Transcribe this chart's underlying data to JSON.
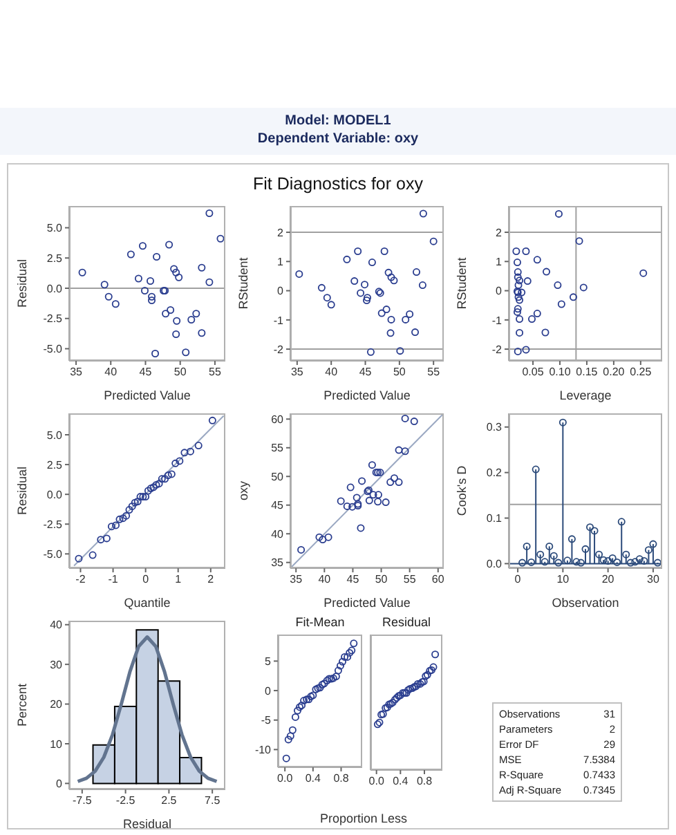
{
  "chart_data": [
    {
      "type": "other",
      "title": "Model: MODEL1",
      "subtitle": "Dependent Variable: oxy",
      "annotations": [
        "Fit Diagnostics for oxy"
      ]
    },
    {
      "type": "scatter",
      "xlabel": "Predicted Value",
      "ylabel": "Residual",
      "marker": "circle",
      "color": "#2a3d8f",
      "xlim": [
        34,
        56.5
      ],
      "ylim": [
        -6,
        6.8
      ],
      "xticks": [
        35,
        40,
        45,
        50,
        55
      ],
      "yticks": [
        {
          "value": -5,
          "label": "-5.0"
        },
        {
          "value": -2.5,
          "label": "-2.5"
        },
        {
          "value": 0,
          "label": "0.0"
        },
        {
          "value": 2.5,
          "label": "2.5"
        },
        {
          "value": 5,
          "label": "5.0"
        }
      ],
      "ref_lines": [
        {
          "axis": "y",
          "value": 0,
          "color": "#a0a0a0"
        }
      ],
      "x": [
        35.9,
        39.1,
        39.7,
        40.7,
        42.9,
        44.0,
        44.6,
        44.9,
        45.7,
        45.9,
        45.9,
        46.4,
        46.6,
        47.6,
        47.8,
        47.9,
        48.4,
        48.6,
        49.1,
        49.4,
        49.5,
        49.4,
        49.8,
        50.8,
        51.6,
        52.3,
        53.1,
        53.1,
        54.2,
        54.2,
        55.8
      ],
      "values": [
        1.3,
        0.3,
        -0.7,
        -1.3,
        2.8,
        0.8,
        3.5,
        -0.2,
        0.6,
        -0.7,
        -1.0,
        -5.4,
        2.6,
        -0.2,
        -0.2,
        -2.1,
        3.6,
        -1.8,
        1.6,
        1.3,
        -2.7,
        -3.8,
        0.9,
        -5.3,
        -2.6,
        -2.1,
        1.7,
        -3.7,
        6.2,
        0.5,
        4.1
      ]
    },
    {
      "type": "scatter",
      "xlabel": "Predicted Value",
      "ylabel": "RStudent",
      "marker": "circle",
      "color": "#2a3d8f",
      "xlim": [
        34,
        56.5
      ],
      "ylim": [
        -2.4,
        2.9
      ],
      "xticks": [
        35,
        40,
        45,
        50,
        55
      ],
      "yticks": [
        -2,
        -1,
        0,
        1,
        2
      ],
      "ref_lines": [
        {
          "axis": "y",
          "value": 2,
          "color": "#a0a0a0"
        },
        {
          "axis": "y",
          "value": -2,
          "color": "#a0a0a0"
        }
      ],
      "x": [
        35.3,
        38.6,
        39.4,
        40.0,
        42.3,
        43.4,
        43.9,
        44.3,
        44.9,
        45.3,
        45.2,
        45.8,
        46.0,
        47.0,
        47.2,
        47.4,
        47.8,
        48.1,
        48.4,
        48.8,
        48.8,
        48.7,
        49.2,
        50.1,
        50.9,
        51.5,
        52.5,
        52.3,
        53.5,
        53.4,
        55.0
      ],
      "values": [
        0.57,
        0.1,
        -0.24,
        -0.48,
        1.07,
        0.33,
        1.35,
        -0.08,
        0.21,
        -0.24,
        -0.33,
        -2.1,
        0.97,
        -0.03,
        -0.08,
        -0.77,
        1.35,
        -0.64,
        0.62,
        0.46,
        -0.99,
        -1.45,
        0.35,
        -2.06,
        -0.99,
        -0.8,
        0.64,
        -1.42,
        2.64,
        0.19,
        1.69
      ]
    },
    {
      "type": "scatter",
      "xlabel": "Leverage",
      "ylabel": "RStudent",
      "marker": "circle",
      "color": "#2a3d8f",
      "xlim": [
        0.005,
        0.29
      ],
      "ylim": [
        -2.4,
        2.9
      ],
      "xticks": [
        0.05,
        {
          "value": 0.1,
          "label": "0.10"
        },
        0.15,
        {
          "value": 0.2,
          "label": "0.20"
        },
        0.25
      ],
      "yticks": [
        -2,
        -1,
        0,
        1,
        2
      ],
      "ref_lines": [
        {
          "axis": "y",
          "value": 2,
          "color": "#a0a0a0"
        },
        {
          "axis": "y",
          "value": -2,
          "color": "#a0a0a0"
        },
        {
          "axis": "x",
          "value": 0.13,
          "color": "#a0a0a0"
        }
      ],
      "x": [
        0.019,
        0.021,
        0.022,
        0.022,
        0.025,
        0.023,
        0.021,
        0.022,
        0.023,
        0.025,
        0.022,
        0.021,
        0.025,
        0.025,
        0.022,
        0.037,
        0.029,
        0.04,
        0.037,
        0.048,
        0.058,
        0.058,
        0.073,
        0.075,
        0.096,
        0.098,
        0.103,
        0.125,
        0.136,
        0.144,
        0.255
      ],
      "values": [
        1.35,
        0.97,
        0.64,
        0.46,
        0.35,
        0.19,
        -0.02,
        -0.06,
        -0.22,
        -0.32,
        -0.62,
        -0.73,
        -0.97,
        -1.44,
        -2.08,
        1.35,
        -0.06,
        0.33,
        -2.02,
        -0.97,
        1.06,
        -0.78,
        -1.43,
        0.65,
        0.19,
        2.63,
        -0.46,
        -0.22,
        1.7,
        0.11,
        0.6
      ]
    },
    {
      "type": "scatter",
      "xlabel": "Quantile",
      "ylabel": "Residual",
      "xlim": [
        -2.35,
        2.45
      ],
      "ylim": [
        -6.2,
        6.8
      ],
      "xticks": [
        -2,
        -1,
        0,
        1,
        2
      ],
      "yticks": [
        {
          "value": -5,
          "label": "-5.0"
        },
        {
          "value": -2.5,
          "label": "-2.5"
        },
        {
          "value": 0,
          "label": "0.0"
        },
        {
          "value": 2.5,
          "label": "2.5"
        },
        {
          "value": 5,
          "label": "5.0"
        }
      ],
      "series": [
        {
          "type": "line",
          "color": "#9aa8c2",
          "x": [
            -2.2,
            2.4
          ],
          "values": [
            -6.0,
            6.6
          ]
        },
        {
          "type": "scatter",
          "marker": "circle",
          "color": "#2a3d8f",
          "x": [
            -2.054,
            -1.626,
            -1.377,
            -1.195,
            -1.045,
            -0.915,
            -0.8,
            -0.693,
            -0.595,
            -0.502,
            -0.413,
            -0.327,
            -0.243,
            -0.161,
            -0.08,
            0,
            0.08,
            0.161,
            0.243,
            0.327,
            0.413,
            0.502,
            0.595,
            0.693,
            0.8,
            0.915,
            1.045,
            1.195,
            1.377,
            1.626,
            2.054
          ],
          "values": [
            -5.4,
            -5.1,
            -3.8,
            -3.7,
            -2.7,
            -2.6,
            -2.1,
            -2.0,
            -1.8,
            -1.3,
            -1.0,
            -0.7,
            -0.6,
            -0.2,
            -0.2,
            -0.2,
            0.3,
            0.5,
            0.6,
            0.8,
            0.9,
            1.3,
            1.3,
            1.6,
            1.7,
            2.6,
            2.8,
            3.5,
            3.6,
            4.1,
            6.2
          ]
        }
      ]
    },
    {
      "type": "scatter",
      "xlabel": "Predicted Value",
      "ylabel": "oxy",
      "xlim": [
        34,
        61
      ],
      "ylim": [
        34,
        61
      ],
      "xticks": [
        35,
        40,
        45,
        50,
        55,
        60
      ],
      "yticks": [
        35,
        40,
        45,
        50,
        55,
        60
      ],
      "series": [
        {
          "type": "line",
          "color": "#9aa8c2",
          "x": [
            34,
            61
          ],
          "values": [
            34,
            61
          ]
        },
        {
          "type": "scatter",
          "marker": "circle",
          "color": "#2a3d8f",
          "x": [
            35.9,
            39.1,
            39.7,
            40.7,
            42.9,
            44.0,
            44.6,
            44.9,
            45.7,
            45.9,
            45.9,
            46.4,
            46.6,
            47.6,
            47.8,
            47.9,
            48.4,
            48.6,
            49.1,
            49.4,
            49.5,
            49.4,
            49.8,
            50.8,
            51.6,
            52.3,
            53.1,
            53.1,
            54.2,
            54.2,
            55.8
          ],
          "values": [
            37.2,
            39.4,
            39.0,
            39.4,
            45.7,
            44.8,
            48.1,
            44.7,
            46.3,
            45.2,
            44.9,
            41.0,
            49.2,
            47.4,
            47.6,
            45.8,
            52.0,
            46.8,
            50.7,
            50.7,
            46.8,
            45.6,
            50.7,
            45.5,
            49.0,
            49.7,
            54.6,
            49.0,
            60.1,
            54.4,
            59.6
          ]
        }
      ]
    },
    {
      "type": "lollipop",
      "xlabel": "Observation",
      "ylabel": "Cook's D",
      "marker": "circle",
      "color": "#2b4a7a",
      "xlim": [
        -2,
        32
      ],
      "ylim": [
        -0.01,
        0.33
      ],
      "xticks": [
        0,
        10,
        20,
        30
      ],
      "yticks": [
        {
          "value": 0,
          "label": "0.0"
        },
        {
          "value": 0.1,
          "label": "0.1"
        },
        {
          "value": 0.2,
          "label": "0.2"
        },
        {
          "value": 0.3,
          "label": "0.3"
        }
      ],
      "ref_lines": [
        {
          "axis": "y",
          "value": 0.13,
          "color": "#a0a0a0"
        },
        {
          "axis": "y",
          "value": 0,
          "color": "#2b4a7a"
        }
      ],
      "x": [
        1,
        2,
        3,
        4,
        5,
        6,
        7,
        8,
        9,
        10,
        11,
        12,
        13,
        14,
        15,
        16,
        17,
        18,
        19,
        20,
        21,
        22,
        23,
        24,
        25,
        26,
        27,
        28,
        29,
        30,
        31
      ],
      "values": [
        0.002,
        0.038,
        0.003,
        0.207,
        0.02,
        0.004,
        0.038,
        0.017,
        0.002,
        0.31,
        0.007,
        0.054,
        0.004,
        0.002,
        0.032,
        0.08,
        0.072,
        0.02,
        0.008,
        0.006,
        0.012,
        0.003,
        0.092,
        0.02,
        0.002,
        0.004,
        0.01,
        0.006,
        0.03,
        0.043,
        0.002
      ]
    },
    {
      "type": "histogram",
      "xlabel": "Residual",
      "ylabel": "Percent",
      "color": "#c6d2e4",
      "xlim": [
        -9,
        9
      ],
      "ylim": [
        -1.5,
        41
      ],
      "xticks": [
        -7.5,
        -2.5,
        2.5,
        7.5
      ],
      "yticks": [
        0,
        10,
        20,
        30,
        40
      ],
      "bins": [
        -6.25,
        -3.75,
        -1.25,
        1.25,
        3.75,
        6.25
      ],
      "values": [
        9.7,
        19.4,
        38.7,
        25.8,
        6.5
      ],
      "series": [
        {
          "type": "line",
          "color": "#62748f",
          "x": [
            -8,
            -7,
            -6,
            -5,
            -4,
            -3,
            -2,
            -1,
            0,
            1,
            2,
            3,
            4,
            5,
            6,
            7,
            8
          ],
          "values": [
            0.5,
            1.3,
            3.1,
            6.6,
            12.3,
            19.9,
            28.1,
            34.5,
            36.9,
            34.5,
            28.1,
            19.9,
            12.3,
            6.6,
            3.1,
            1.3,
            0.5
          ]
        }
      ]
    },
    {
      "type": "scatter",
      "title": "Fit-Mean",
      "xlabel": "Proportion Less",
      "marker": "circle",
      "color": "#2a3d8f",
      "xlim": [
        -0.1,
        1.1
      ],
      "ylim": [
        -13,
        9.5
      ],
      "xticks": [
        {
          "value": 0,
          "label": "0.0"
        },
        0.4,
        0.8
      ],
      "yticks": [
        -10,
        -5,
        0,
        5
      ],
      "x": [
        0.02,
        0.05,
        0.08,
        0.11,
        0.15,
        0.18,
        0.21,
        0.24,
        0.27,
        0.31,
        0.34,
        0.37,
        0.4,
        0.44,
        0.47,
        0.5,
        0.53,
        0.56,
        0.6,
        0.63,
        0.66,
        0.69,
        0.73,
        0.76,
        0.79,
        0.82,
        0.85,
        0.89,
        0.92,
        0.95,
        0.98
      ],
      "values": [
        -11.5,
        -8.3,
        -7.7,
        -6.7,
        -4.5,
        -3.4,
        -2.8,
        -2.5,
        -1.7,
        -1.5,
        -1.5,
        -1.0,
        -0.8,
        0.2,
        0.4,
        0.5,
        1.0,
        1.2,
        1.7,
        2.0,
        2.0,
        2.1,
        2.4,
        3.4,
        4.2,
        4.9,
        5.7,
        5.7,
        6.4,
        6.8,
        8.0
      ]
    },
    {
      "type": "scatter",
      "title": "Residual",
      "marker": "circle",
      "color": "#2a3d8f",
      "tick_labels": "x",
      "xlim": [
        -0.1,
        1.1
      ],
      "ylim": [
        -13,
        9.5
      ],
      "xticks": [
        {
          "value": 0,
          "label": "0.0"
        },
        0.4,
        0.8
      ],
      "yticks": [
        -10,
        -5,
        0,
        5
      ],
      "x": [
        0.02,
        0.05,
        0.08,
        0.11,
        0.15,
        0.18,
        0.21,
        0.24,
        0.27,
        0.31,
        0.34,
        0.37,
        0.4,
        0.44,
        0.47,
        0.5,
        0.53,
        0.56,
        0.6,
        0.63,
        0.66,
        0.69,
        0.73,
        0.76,
        0.79,
        0.82,
        0.85,
        0.89,
        0.92,
        0.95,
        0.98
      ],
      "values": [
        -5.4,
        -5.1,
        -3.8,
        -3.7,
        -2.7,
        -2.6,
        -2.1,
        -2.0,
        -1.8,
        -1.3,
        -1.0,
        -0.7,
        -0.6,
        -0.2,
        -0.2,
        -0.2,
        0.3,
        0.5,
        0.6,
        0.8,
        0.9,
        1.3,
        1.3,
        1.6,
        1.7,
        2.6,
        2.8,
        3.5,
        3.6,
        4.1,
        6.2
      ]
    },
    {
      "type": "other",
      "annotations": [
        "Observations",
        "31",
        "Parameters",
        "2",
        "Error DF",
        "29",
        "MSE",
        "7.5384",
        "R-Square",
        "0.7433",
        "Adj R-Square",
        "0.7345"
      ]
    }
  ]
}
